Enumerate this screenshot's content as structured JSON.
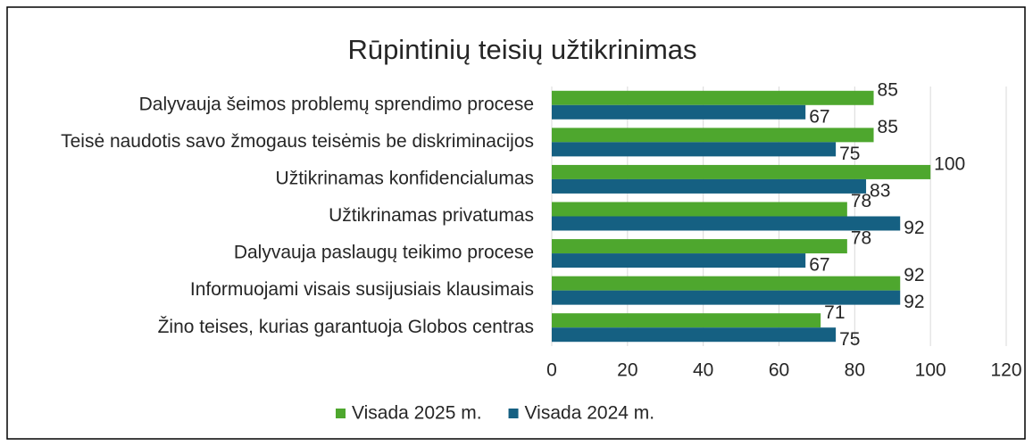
{
  "chart_data": {
    "type": "bar",
    "orientation": "horizontal",
    "title": "Rūpintinių teisių užtikrinimas",
    "categories": [
      "Dalyvauja šeimos problemų sprendimo procese",
      "Teisė naudotis savo žmogaus teisėmis be diskriminacijos",
      "Užtikrinamas konfidencialumas",
      "Užtikrinamas privatumas",
      "Dalyvauja paslaugų teikimo procese",
      "Informuojami visais susijusiais klausimais",
      "Žino teises, kurias garantuoja Globos centras"
    ],
    "series": [
      {
        "name": "Visada 2025 m.",
        "color": "#4ea72e",
        "values": [
          85,
          85,
          100,
          78,
          78,
          92,
          71
        ]
      },
      {
        "name": "Visada 2024 m.",
        "color": "#156082",
        "values": [
          67,
          75,
          83,
          92,
          67,
          92,
          75
        ]
      }
    ],
    "xlim": [
      0,
      120
    ],
    "xticks": [
      0,
      20,
      40,
      60,
      80,
      100,
      120
    ],
    "grid": true,
    "legend": "bottom"
  }
}
